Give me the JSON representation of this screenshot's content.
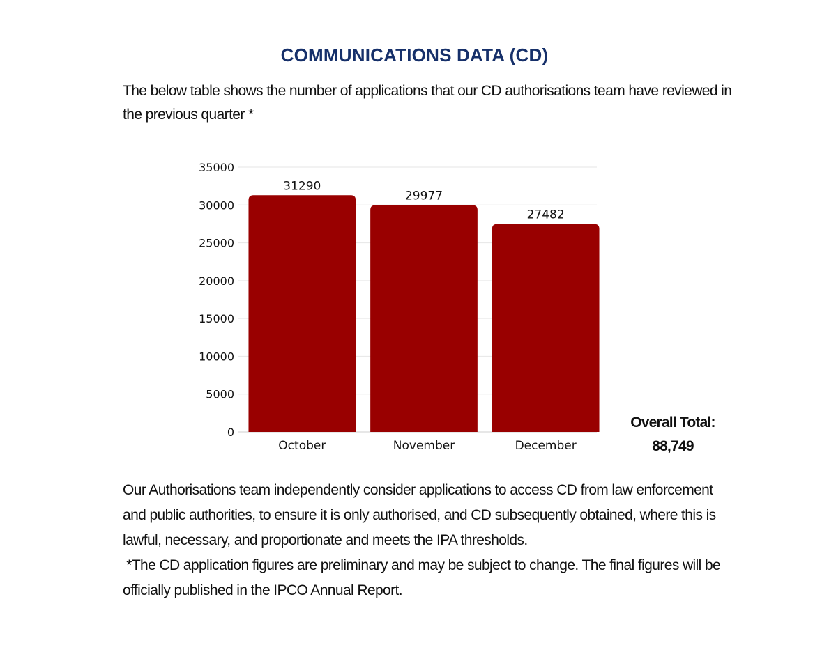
{
  "header": {
    "title": "COMMUNICATIONS DATA (CD)",
    "intro": "The below  table shows the number of applications that our CD authorisations team have reviewed in the previous quarter *"
  },
  "chart_data": {
    "type": "bar",
    "categories": [
      "October",
      "November",
      "December"
    ],
    "values": [
      31290,
      29977,
      27482
    ],
    "data_labels": [
      "31290",
      "29977",
      "27482"
    ],
    "ylim": [
      0,
      35000
    ],
    "yticks": [
      0,
      5000,
      10000,
      15000,
      20000,
      25000,
      30000,
      35000
    ],
    "title": "",
    "xlabel": "",
    "ylabel": "",
    "grid": true,
    "bar_color": "#990000"
  },
  "summary": {
    "total_label": "Overall Total:",
    "total_value": "88,749"
  },
  "footer": {
    "paragraph": "Our Authorisations team independently consider applications to access CD from law enforcement and public authorities, to ensure it is only authorised, and CD subsequently obtained, where this is lawful, necessary, and proportionate and meets the IPA thresholds.",
    "note": " *The CD application figures are preliminary and may be subject to change. The final figures will be officially published in the IPCO Annual Report."
  },
  "colors": {
    "title": "#16306a",
    "bar": "#990000",
    "grid": "#e6e6e6",
    "text": "#111111"
  }
}
